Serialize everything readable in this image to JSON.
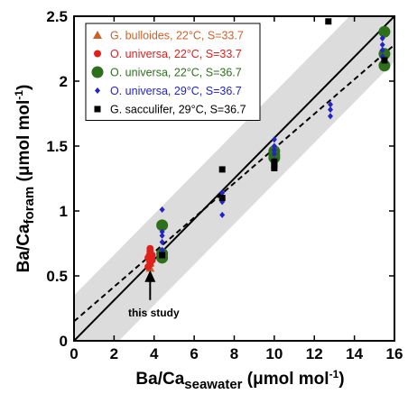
{
  "chart_data": {
    "type": "scatter",
    "xlabel": {
      "base": "Ba/Ca",
      "sub": "seawater",
      "unit_pre": " (μmol mol",
      "unit_sup": "-1",
      "unit_post": ")"
    },
    "ylabel": {
      "base": "Ba/Ca",
      "sub": "foram",
      "unit_pre": " (μmol mol",
      "unit_sup": "-1",
      "unit_post": ")"
    },
    "xlim": [
      0,
      16
    ],
    "ylim": [
      0,
      2.5
    ],
    "xticks": [
      0,
      2,
      4,
      6,
      8,
      10,
      12,
      14,
      16
    ],
    "yticks": [
      0,
      0.5,
      1,
      1.5,
      2,
      2.5
    ],
    "ytick_labels": [
      "0",
      "0.5",
      "1",
      "1.5",
      "2",
      "2.5"
    ],
    "grid": false,
    "legend_position": "top-left",
    "series": [
      {
        "name": "G. bulloides, 22°C, S=33.7",
        "marker": "triangle",
        "color": "#c8632b",
        "points": [
          [
            3.8,
            0.56
          ],
          [
            3.8,
            0.6
          ],
          [
            3.8,
            0.63
          ],
          [
            3.8,
            0.66
          ],
          [
            3.8,
            0.69
          ]
        ]
      },
      {
        "name": "O. universa, 22°C, S=33.7",
        "marker": "circle-small",
        "color": "#e0201c",
        "points": [
          [
            3.8,
            0.59
          ],
          [
            3.8,
            0.61
          ],
          [
            3.8,
            0.63
          ],
          [
            3.8,
            0.65
          ],
          [
            3.8,
            0.67
          ],
          [
            3.8,
            0.69
          ],
          [
            3.8,
            0.71
          ],
          [
            3.7,
            0.64
          ],
          [
            3.9,
            0.66
          ],
          [
            3.7,
            0.57
          ],
          [
            3.9,
            0.62
          ]
        ]
      },
      {
        "name": "O. universa, 22°C, S=36.7",
        "marker": "circle-large",
        "color": "#2e6f1c",
        "points": [
          [
            4.4,
            0.89
          ],
          [
            4.4,
            0.67
          ],
          [
            4.4,
            0.64
          ],
          [
            10.0,
            1.46
          ],
          [
            10.0,
            1.43
          ],
          [
            10.0,
            1.41
          ],
          [
            15.5,
            2.38
          ],
          [
            15.5,
            2.21
          ],
          [
            15.5,
            2.12
          ]
        ]
      },
      {
        "name": "O. universa, 29°C, S=36.7",
        "marker": "diamond",
        "color": "#2323c8",
        "points": [
          [
            4.4,
            1.01
          ],
          [
            4.4,
            0.84
          ],
          [
            4.4,
            0.81
          ],
          [
            4.4,
            0.76
          ],
          [
            4.4,
            0.7
          ],
          [
            4.4,
            0.66
          ],
          [
            7.4,
            1.14
          ],
          [
            7.4,
            1.07
          ],
          [
            7.4,
            0.97
          ],
          [
            10.0,
            1.55
          ],
          [
            10.0,
            1.5
          ],
          [
            10.0,
            1.47
          ],
          [
            10.0,
            1.44
          ],
          [
            10.0,
            1.39
          ],
          [
            12.8,
            1.82
          ],
          [
            12.8,
            1.78
          ],
          [
            12.8,
            1.73
          ],
          [
            15.4,
            2.33
          ],
          [
            15.4,
            2.28
          ],
          [
            15.4,
            2.24
          ],
          [
            15.4,
            2.19
          ]
        ]
      },
      {
        "name": "G. sacculifer, 29°C, S=36.7",
        "marker": "square",
        "color": "#000000",
        "points": [
          [
            12.7,
            2.46
          ],
          [
            7.4,
            1.32
          ],
          [
            7.4,
            1.1
          ],
          [
            10.0,
            1.38
          ],
          [
            10.0,
            1.35
          ],
          [
            10.0,
            1.33
          ],
          [
            4.4,
            0.66
          ],
          [
            15.5,
            2.16
          ]
        ]
      }
    ],
    "solid_line": {
      "from": [
        0,
        0
      ],
      "to": [
        16,
        2.5
      ]
    },
    "dashed_line": {
      "from": [
        0,
        0.15
      ],
      "to": [
        16,
        2.28
      ]
    },
    "band": {
      "offset": 0.35
    },
    "annotation": {
      "text": "this study",
      "x": 3.8,
      "y": 0.55
    }
  }
}
